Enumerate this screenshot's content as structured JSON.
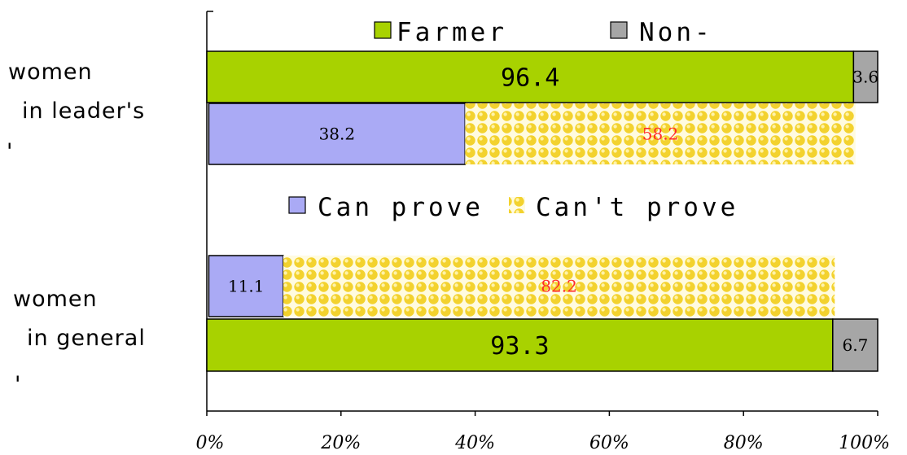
{
  "chart_data": {
    "type": "bar",
    "orientation": "horizontal",
    "stacked": true,
    "normalized": true,
    "categories": [
      "women in leader's",
      "women in general"
    ],
    "category_label_lines": [
      [
        "women",
        "in leader's",
        "'"
      ],
      [
        "women",
        "in general",
        "'"
      ]
    ],
    "xlim": [
      0,
      100
    ],
    "x_ticks": [
      "0%",
      "20%",
      "40%",
      "60%",
      "80%",
      "100%"
    ],
    "legends": [
      {
        "group": "occupation",
        "entries": [
          "Farmer",
          "Non-"
        ]
      },
      {
        "group": "proof",
        "entries": [
          "Can prove",
          "Can't prove"
        ]
      }
    ],
    "series": [
      {
        "name": "Farmer",
        "group": "occupation",
        "values": [
          96.4,
          93.3
        ],
        "labels": [
          "96.4",
          "93.3"
        ]
      },
      {
        "name": "Non-",
        "group": "occupation",
        "values": [
          3.6,
          6.7
        ],
        "labels": [
          "3.6",
          "6.7"
        ]
      },
      {
        "name": "Can prove",
        "group": "proof",
        "values": [
          38.2,
          11.1
        ],
        "labels": [
          "38.2",
          "11.1"
        ]
      },
      {
        "name": "Can't prove",
        "group": "proof",
        "values": [
          58.2,
          82.2
        ],
        "labels": [
          "58.2",
          "82.2"
        ]
      }
    ],
    "colors": {
      "Farmer": "#a8d200",
      "Non-": "#a6a6a6",
      "Can prove": "#aaaaf5",
      "Can't prove": "#f5d63a"
    },
    "grid": false
  }
}
